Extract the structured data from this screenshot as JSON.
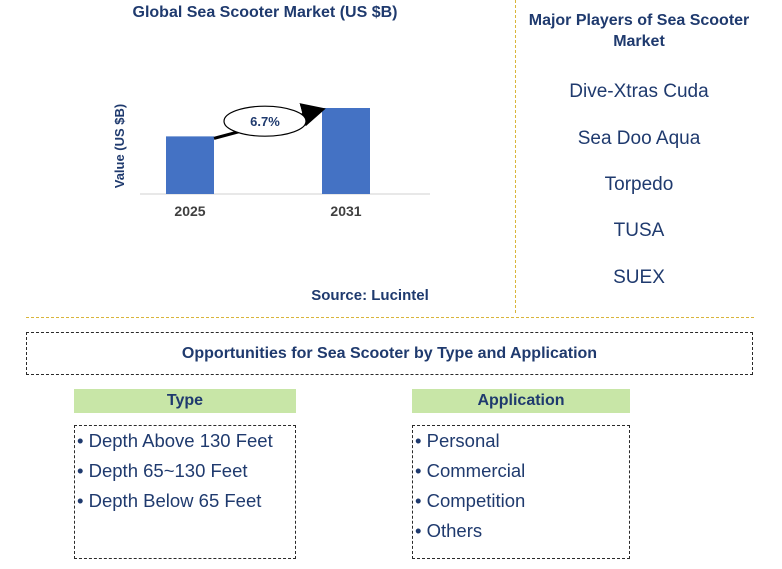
{
  "chart_title": "Global Sea Scooter Market (US $B)",
  "source": "Source: Lucintel",
  "players": {
    "title": "Major Players of Sea Scooter Market",
    "items": [
      "Dive-Xtras Cuda",
      "Sea Doo Aqua",
      "Torpedo",
      "TUSA",
      "SUEX"
    ]
  },
  "opportunities": {
    "title": "Opportunities for Sea Scooter by Type and Application",
    "type": {
      "header": "Type",
      "items": [
        "• Depth Above 130 Feet",
        "• Depth 65~130 Feet",
        "• Depth Below 65 Feet"
      ]
    },
    "application": {
      "header": "Application",
      "items": [
        "• Personal",
        "• Commercial",
        "• Competition",
        "• Others"
      ]
    }
  },
  "chart_data": {
    "type": "bar",
    "title": "Global Sea Scooter Market (US $B)",
    "xlabel": "",
    "ylabel": "Value (US $B)",
    "categories": [
      "2025",
      "2031"
    ],
    "values": [
      0.67,
      1.0
    ],
    "bar_color": "#4472c4",
    "cagr_label": "6.7%",
    "grid": false,
    "legend": "none"
  }
}
